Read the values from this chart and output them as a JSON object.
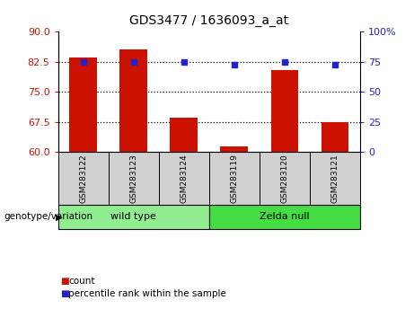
{
  "title": "GDS3477 / 1636093_a_at",
  "samples": [
    "GSM283122",
    "GSM283123",
    "GSM283124",
    "GSM283119",
    "GSM283120",
    "GSM283121"
  ],
  "bar_values": [
    83.5,
    85.5,
    68.5,
    61.5,
    80.5,
    67.5
  ],
  "pct_right_axis": [
    75.0,
    75.0,
    75.0,
    73.0,
    75.0,
    73.0
  ],
  "ylim_left": [
    60,
    90
  ],
  "ylim_right": [
    0,
    100
  ],
  "yticks_left": [
    60,
    67.5,
    75,
    82.5,
    90
  ],
  "yticks_right": [
    0,
    25,
    50,
    75,
    100
  ],
  "ytick_right_labels": [
    "0",
    "25",
    "50",
    "75",
    "100%"
  ],
  "hlines": [
    82.5,
    75.0,
    67.5
  ],
  "bar_color": "#cc1100",
  "dot_color": "#2222cc",
  "cell_color": "#d0d0d0",
  "wild_type_color": "#90ee90",
  "zelda_null_color": "#44dd44",
  "legend_count_label": "count",
  "legend_percentile_label": "percentile rank within the sample",
  "genotype_label": "genotype/variation",
  "wild_type_label": "wild type",
  "zelda_null_label": "Zelda null",
  "n_wild": 3,
  "n_zelda": 3
}
